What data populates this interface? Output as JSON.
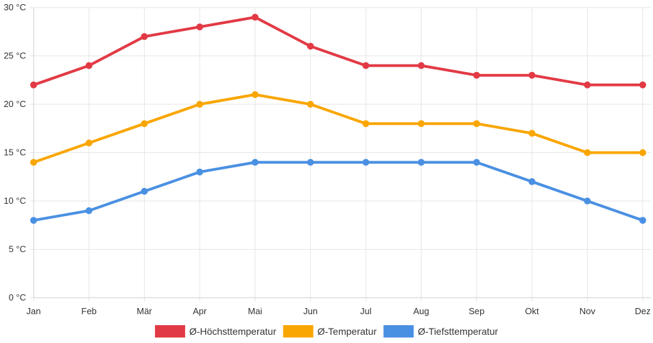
{
  "chart_data": {
    "type": "line",
    "title": "",
    "xlabel": "",
    "ylabel": "",
    "categories": [
      "Jan",
      "Feb",
      "Mär",
      "Apr",
      "Mai",
      "Jun",
      "Jul",
      "Aug",
      "Sep",
      "Okt",
      "Nov",
      "Dez"
    ],
    "ylim": [
      0,
      30
    ],
    "y_tick_step": 5,
    "y_unit": "°C",
    "grid": true,
    "legend_position": "bottom-center",
    "series": [
      {
        "name": "Ø-Höchsttemperatur",
        "color": "#e23a45",
        "values": [
          22,
          24,
          27,
          28,
          29,
          26,
          24,
          24,
          23,
          23,
          22,
          22
        ]
      },
      {
        "name": "Ø-Temperatur",
        "color": "#f9a602",
        "values": [
          14,
          16,
          18,
          20,
          21,
          20,
          18,
          18,
          18,
          17,
          15,
          15
        ]
      },
      {
        "name": "Ø-Tiefsttemperatur",
        "color": "#4a90e2",
        "values": [
          8,
          9,
          11,
          13,
          14,
          14,
          14,
          14,
          14,
          12,
          10,
          8
        ]
      }
    ]
  }
}
